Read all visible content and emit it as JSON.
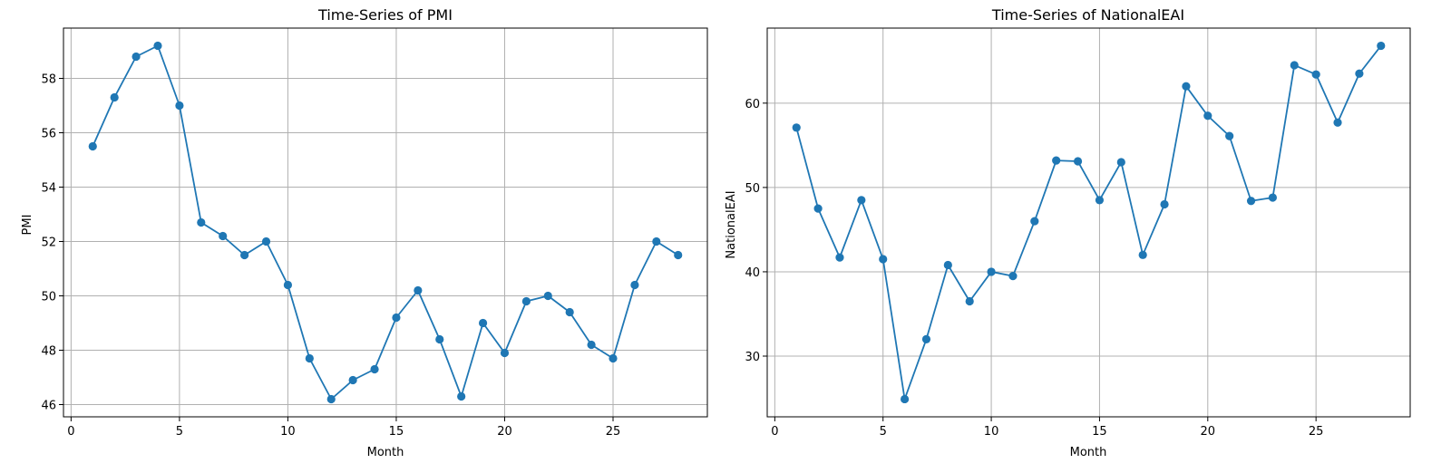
{
  "chart_data": [
    {
      "type": "line",
      "title": "Time-Series of PMI",
      "xlabel": "Month",
      "ylabel": "PMI",
      "x": [
        1,
        2,
        3,
        4,
        5,
        6,
        7,
        8,
        9,
        10,
        11,
        12,
        13,
        14,
        15,
        16,
        17,
        18,
        19,
        20,
        21,
        22,
        23,
        24,
        25,
        26,
        27,
        28
      ],
      "series": [
        {
          "values": [
            55.5,
            57.3,
            58.8,
            59.2,
            57.0,
            52.7,
            52.2,
            51.5,
            52.0,
            50.4,
            47.7,
            46.2,
            46.9,
            47.3,
            49.2,
            50.2,
            48.4,
            46.3,
            49.0,
            47.9,
            49.8,
            50.0,
            49.4,
            48.2,
            47.7,
            50.4,
            52.0,
            51.5
          ],
          "color": "#1f77b4",
          "marker": "circle"
        }
      ],
      "xlim": [
        -0.35,
        29.35
      ],
      "ylim": [
        45.55,
        59.85
      ],
      "xticks": [
        0,
        5,
        10,
        15,
        20,
        25
      ],
      "yticks": [
        46,
        48,
        50,
        52,
        54,
        56,
        58
      ],
      "grid": true
    },
    {
      "type": "line",
      "title": "Time-Series of NationalEAI",
      "xlabel": "Month",
      "ylabel": "NationalEAI",
      "x": [
        1,
        2,
        3,
        4,
        5,
        6,
        7,
        8,
        9,
        10,
        11,
        12,
        13,
        14,
        15,
        16,
        17,
        18,
        19,
        20,
        21,
        22,
        23,
        24,
        25,
        26,
        27,
        28
      ],
      "series": [
        {
          "values": [
            57.1,
            47.5,
            41.7,
            48.5,
            41.5,
            24.9,
            32.0,
            40.8,
            36.5,
            40.0,
            39.5,
            46.0,
            53.2,
            53.1,
            48.5,
            53.0,
            42.0,
            48.0,
            62.0,
            58.5,
            56.1,
            48.4,
            48.8,
            64.5,
            63.4,
            57.7,
            63.5,
            66.8
          ],
          "color": "#1f77b4",
          "marker": "circle"
        }
      ],
      "xlim": [
        -0.35,
        29.35
      ],
      "ylim": [
        22.8,
        68.9
      ],
      "xticks": [
        0,
        5,
        10,
        15,
        20,
        25
      ],
      "yticks": [
        30,
        40,
        50,
        60
      ],
      "grid": true
    }
  ]
}
